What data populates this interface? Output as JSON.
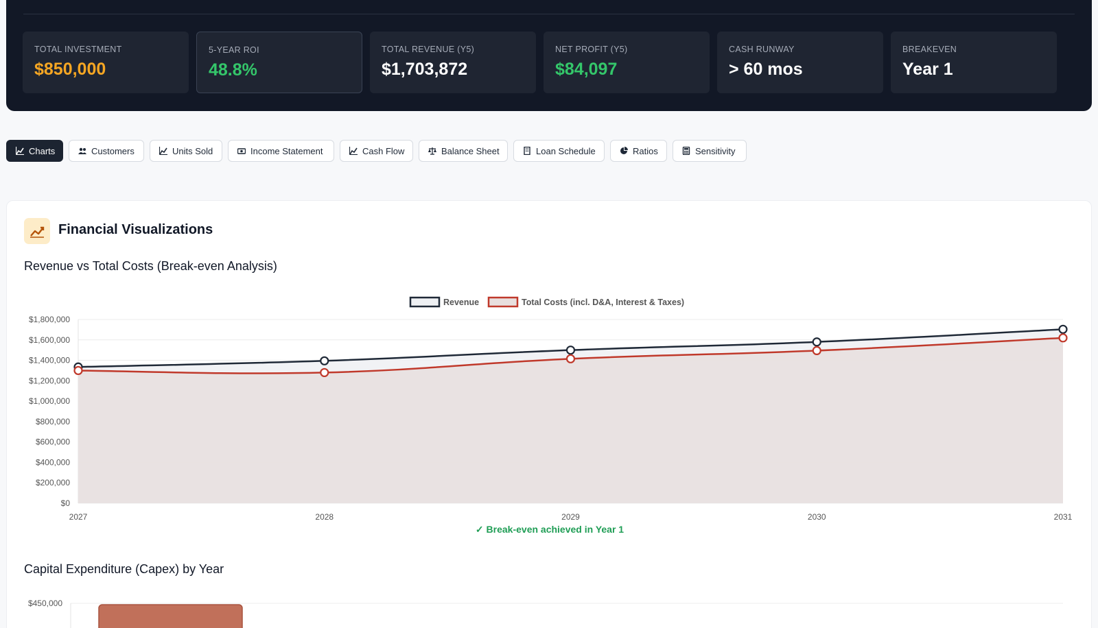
{
  "kpis": [
    {
      "label": "TOTAL INVESTMENT",
      "value": "$850,000",
      "color": "#f5a623"
    },
    {
      "label": "5-YEAR ROI",
      "value": "48.8%",
      "color": "#34c66a"
    },
    {
      "label": "TOTAL REVENUE (Y5)",
      "value": "$1,703,872",
      "color": "#ffffff"
    },
    {
      "label": "NET PROFIT (Y5)",
      "value": "$84,097",
      "color": "#34c66a"
    },
    {
      "label": "CASH RUNWAY",
      "value": "> 60 mos",
      "color": "#ffffff"
    },
    {
      "label": "BREAKEVEN",
      "value": "Year 1",
      "color": "#ffffff"
    }
  ],
  "tabs": [
    {
      "label": "Charts",
      "icon": "chart-line-icon",
      "active": true
    },
    {
      "label": "Customers",
      "icon": "users-icon"
    },
    {
      "label": "Units Sold",
      "icon": "chart-line-icon"
    },
    {
      "label": "Income Statement",
      "icon": "money-bill-icon"
    },
    {
      "label": "Cash Flow",
      "icon": "chart-line-icon"
    },
    {
      "label": "Balance Sheet",
      "icon": "scale-icon"
    },
    {
      "label": "Loan Schedule",
      "icon": "building-icon"
    },
    {
      "label": "Ratios",
      "icon": "pie-chart-icon"
    },
    {
      "label": "Sensitivity",
      "icon": "calculator-icon"
    }
  ],
  "card": {
    "title": "Financial Visualizations",
    "icon": "chart-trend-icon"
  },
  "section1": {
    "title": "Revenue vs Total Costs (Break-even Analysis)",
    "breakeven_note": "✓ Break-even achieved in Year 1"
  },
  "section2": {
    "title": "Capital Expenditure (Capex) by Year"
  },
  "chart_data": [
    {
      "type": "line",
      "title": "Revenue vs Total Costs (Break-even Analysis)",
      "x": [
        "2027",
        "2028",
        "2029",
        "2030",
        "2031"
      ],
      "ylim": [
        0,
        1800000
      ],
      "yticks": [
        "$0",
        "$200,000",
        "$400,000",
        "$600,000",
        "$800,000",
        "$1,000,000",
        "$1,200,000",
        "$1,400,000",
        "$1,600,000",
        "$1,800,000"
      ],
      "grid": true,
      "legend": "top-center",
      "series": [
        {
          "name": "Revenue",
          "values": [
            1335000,
            1395000,
            1500000,
            1580000,
            1703872
          ],
          "color": "#1f2937",
          "fill": "#eef0f3"
        },
        {
          "name": "Total Costs (incl. D&A, Interest & Taxes)",
          "values": [
            1300000,
            1280000,
            1415000,
            1495000,
            1619775
          ],
          "color": "#c0392b",
          "fill": "#e8dfde"
        }
      ]
    },
    {
      "type": "bar",
      "title": "Capital Expenditure (Capex) by Year",
      "ylim": [
        0,
        450000
      ],
      "yticks": [
        "$450,000"
      ],
      "color": "#c1705a"
    }
  ]
}
